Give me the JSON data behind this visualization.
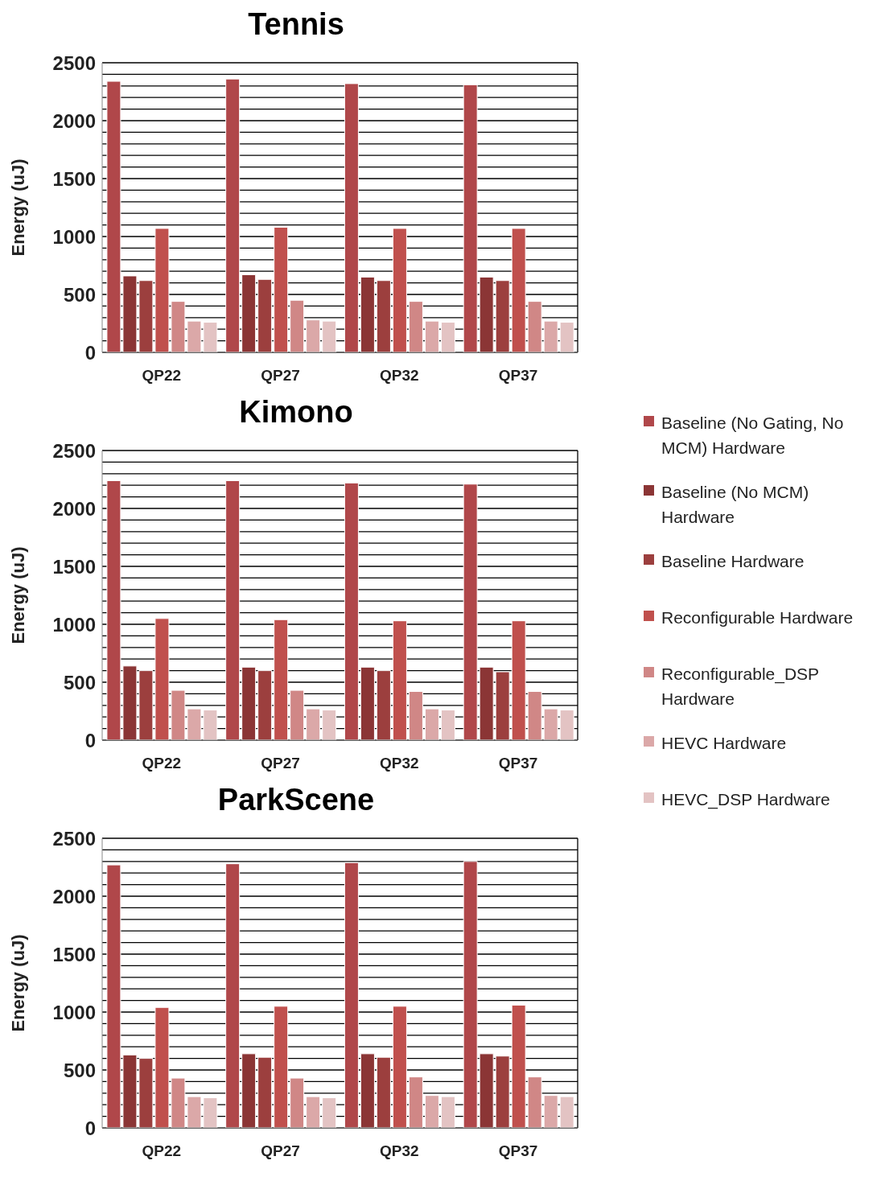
{
  "chart_data": [
    {
      "type": "bar",
      "title": "Tennis",
      "ylabel": "Energy (uJ)",
      "categories": [
        "QP22",
        "QP27",
        "QP32",
        "QP37"
      ],
      "ylim": [
        0,
        2500
      ],
      "yticks": [
        0,
        {
          "value": 100,
          "label": null
        },
        {
          "value": 200,
          "label": null
        },
        {
          "value": 300,
          "label": null
        },
        {
          "value": 400,
          "label": null
        },
        500,
        {
          "value": 600,
          "label": null
        },
        {
          "value": 700,
          "label": null
        },
        {
          "value": 800,
          "label": null
        },
        {
          "value": 900,
          "label": null
        },
        1000,
        {
          "value": 1100,
          "label": null
        },
        {
          "value": 1200,
          "label": null
        },
        {
          "value": 1300,
          "label": null
        },
        {
          "value": 1400,
          "label": null
        },
        1500,
        {
          "value": 1600,
          "label": null
        },
        {
          "value": 1700,
          "label": null
        },
        {
          "value": 1800,
          "label": null
        },
        {
          "value": 1900,
          "label": null
        },
        2000,
        {
          "value": 2100,
          "label": null
        },
        {
          "value": 2200,
          "label": null
        },
        {
          "value": 2300,
          "label": null
        },
        {
          "value": 2400,
          "label": null
        },
        2500
      ],
      "grid": "y",
      "series": [
        {
          "color": "#b0474a",
          "values": [
            2340,
            2360,
            2320,
            2310
          ]
        },
        {
          "color": "#8b3535",
          "values": [
            660,
            670,
            650,
            650
          ]
        },
        {
          "color": "#9c3f3e",
          "values": [
            620,
            630,
            620,
            620
          ]
        },
        {
          "color": "#c0504d",
          "values": [
            1070,
            1080,
            1070,
            1070
          ]
        },
        {
          "color": "#d08786",
          "values": [
            440,
            450,
            440,
            440
          ]
        },
        {
          "color": "#dba8a8",
          "values": [
            270,
            280,
            270,
            270
          ]
        },
        {
          "color": "#e3c3c3",
          "values": [
            260,
            270,
            260,
            260
          ]
        }
      ]
    },
    {
      "type": "bar",
      "title": "Kimono",
      "ylabel": "Energy (uJ)",
      "categories": [
        "QP22",
        "QP27",
        "QP32",
        "QP37"
      ],
      "ylim": [
        0,
        2500
      ],
      "yticks": [
        0,
        {
          "value": 100,
          "label": null
        },
        {
          "value": 200,
          "label": null
        },
        {
          "value": 300,
          "label": null
        },
        {
          "value": 400,
          "label": null
        },
        500,
        {
          "value": 600,
          "label": null
        },
        {
          "value": 700,
          "label": null
        },
        {
          "value": 800,
          "label": null
        },
        {
          "value": 900,
          "label": null
        },
        1000,
        {
          "value": 1100,
          "label": null
        },
        {
          "value": 1200,
          "label": null
        },
        {
          "value": 1300,
          "label": null
        },
        {
          "value": 1400,
          "label": null
        },
        1500,
        {
          "value": 1600,
          "label": null
        },
        {
          "value": 1700,
          "label": null
        },
        {
          "value": 1800,
          "label": null
        },
        {
          "value": 1900,
          "label": null
        },
        2000,
        {
          "value": 2100,
          "label": null
        },
        {
          "value": 2200,
          "label": null
        },
        {
          "value": 2300,
          "label": null
        },
        {
          "value": 2400,
          "label": null
        },
        2500
      ],
      "grid": "y",
      "legend": "right",
      "series": [
        {
          "name": "Baseline (No Gating, No MCM) Hardware",
          "color": "#b0474a",
          "values": [
            2240,
            2240,
            2220,
            2210
          ]
        },
        {
          "name": "Baseline (No MCM) Hardware",
          "color": "#8b3535",
          "values": [
            640,
            630,
            630,
            630
          ]
        },
        {
          "name": "Baseline Hardware",
          "color": "#9c3f3e",
          "values": [
            600,
            600,
            600,
            590
          ]
        },
        {
          "name": "Reconfigurable Hardware",
          "color": "#c0504d",
          "values": [
            1050,
            1040,
            1030,
            1030
          ]
        },
        {
          "name": "Reconfigurable_DSP Hardware",
          "color": "#d08786",
          "values": [
            430,
            430,
            420,
            420
          ]
        },
        {
          "name": "HEVC Hardware",
          "color": "#dba8a8",
          "values": [
            270,
            270,
            270,
            270
          ]
        },
        {
          "name": "HEVC_DSP Hardware",
          "color": "#e3c3c3",
          "values": [
            260,
            260,
            260,
            260
          ]
        }
      ]
    },
    {
      "type": "bar",
      "title": "ParkScene",
      "ylabel": "Energy (uJ)",
      "categories": [
        "QP22",
        "QP27",
        "QP32",
        "QP37"
      ],
      "ylim": [
        0,
        2500
      ],
      "yticks": [
        0,
        {
          "value": 100,
          "label": null
        },
        {
          "value": 200,
          "label": null
        },
        {
          "value": 300,
          "label": null
        },
        {
          "value": 400,
          "label": null
        },
        500,
        {
          "value": 600,
          "label": null
        },
        {
          "value": 700,
          "label": null
        },
        {
          "value": 800,
          "label": null
        },
        {
          "value": 900,
          "label": null
        },
        1000,
        {
          "value": 1100,
          "label": null
        },
        {
          "value": 1200,
          "label": null
        },
        {
          "value": 1300,
          "label": null
        },
        {
          "value": 1400,
          "label": null
        },
        1500,
        {
          "value": 1600,
          "label": null
        },
        {
          "value": 1700,
          "label": null
        },
        {
          "value": 1800,
          "label": null
        },
        {
          "value": 1900,
          "label": null
        },
        2000,
        {
          "value": 2100,
          "label": null
        },
        {
          "value": 2200,
          "label": null
        },
        {
          "value": 2300,
          "label": null
        },
        {
          "value": 2400,
          "label": null
        },
        2500
      ],
      "grid": "y",
      "series": [
        {
          "color": "#b0474a",
          "values": [
            2270,
            2280,
            2290,
            2300
          ]
        },
        {
          "color": "#8b3535",
          "values": [
            630,
            640,
            640,
            640
          ]
        },
        {
          "color": "#9c3f3e",
          "values": [
            600,
            610,
            610,
            620
          ]
        },
        {
          "color": "#c0504d",
          "values": [
            1040,
            1050,
            1050,
            1060
          ]
        },
        {
          "color": "#d08786",
          "values": [
            430,
            430,
            440,
            440
          ]
        },
        {
          "color": "#dba8a8",
          "values": [
            270,
            270,
            280,
            280
          ]
        },
        {
          "color": "#e3c3c3",
          "values": [
            260,
            260,
            270,
            270
          ]
        }
      ]
    }
  ]
}
